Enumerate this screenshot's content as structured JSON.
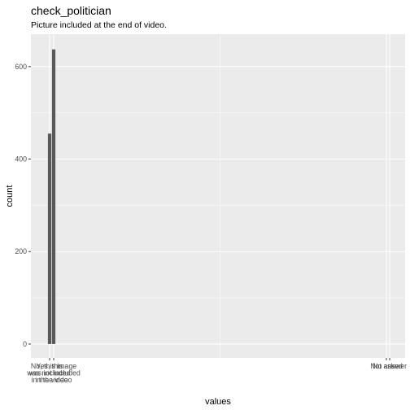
{
  "chart_data": {
    "type": "bar",
    "title": "check_politician",
    "subtitle": "Picture included at the end of video.",
    "xlabel": "values",
    "ylabel": "count",
    "categories": [
      "Yes, this image was included in the video",
      "No, this image was not included in the video",
      "Not asked",
      "No answer"
    ],
    "category_lines": [
      [
        "Yes, this",
        "was included",
        "in the video"
      ],
      [
        "No, this image",
        "was not included",
        "in the video"
      ],
      [
        "Not asked"
      ],
      [
        "No answer"
      ]
    ],
    "values": [
      455,
      637,
      0,
      0
    ],
    "yticks": [
      0,
      200,
      400,
      600
    ],
    "ylim": [
      -30,
      670
    ],
    "bar_color": "#595959",
    "panel_color": "#ebebeb",
    "grid_color": "#ffffff",
    "grid": true,
    "legend": "none"
  }
}
